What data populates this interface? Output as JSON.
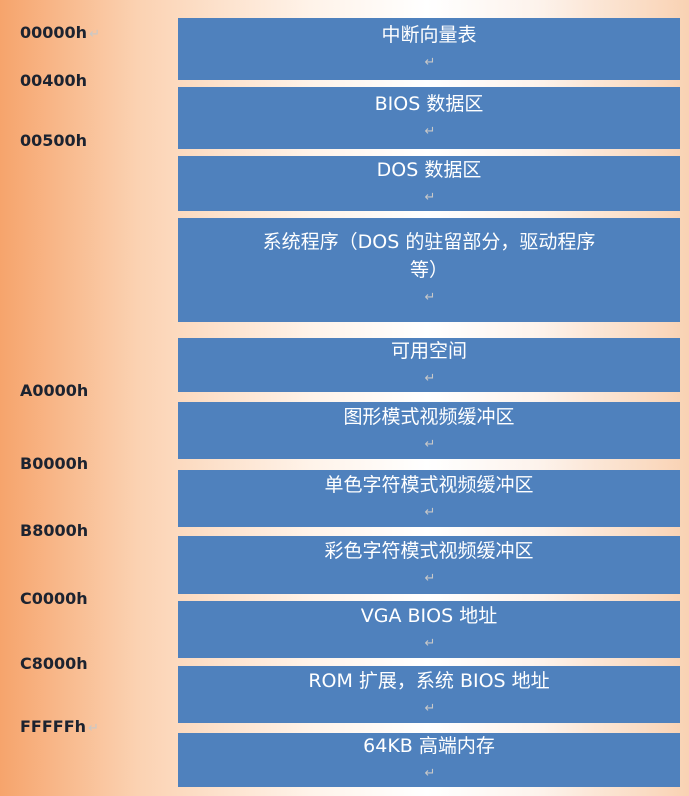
{
  "addresses": [
    {
      "label": "00000h",
      "mark": "↵"
    },
    {
      "label": "00400h",
      "mark": ""
    },
    {
      "label": "00500h",
      "mark": ""
    },
    {
      "label": "A0000h",
      "mark": ""
    },
    {
      "label": "B0000h",
      "mark": ""
    },
    {
      "label": "B8000h",
      "mark": ""
    },
    {
      "label": "C0000h",
      "mark": ""
    },
    {
      "label": "C8000h",
      "mark": ""
    },
    {
      "label": "FFFFFh",
      "mark": "↵"
    }
  ],
  "blocks": [
    {
      "line1": "中断向量表",
      "line2": "",
      "mark": "↵"
    },
    {
      "line1": "BIOS 数据区",
      "line2": "",
      "mark": "↵"
    },
    {
      "line1": "DOS 数据区",
      "line2": "",
      "mark": "↵"
    },
    {
      "line1": "系统程序（DOS 的驻留部分，驱动程序",
      "line2": "等）",
      "mark": "↵"
    },
    {
      "line1": "可用空间",
      "line2": "",
      "mark": "↵"
    },
    {
      "line1": "图形模式视频缓冲区",
      "line2": "",
      "mark": "↵"
    },
    {
      "line1": "单色字符模式视频缓冲区",
      "line2": "",
      "mark": "↵"
    },
    {
      "line1": "彩色字符模式视频缓冲区",
      "line2": "",
      "mark": "↵"
    },
    {
      "line1": "VGA BIOS 地址",
      "line2": "",
      "mark": "↵"
    },
    {
      "line1": "ROM 扩展，系统 BIOS 地址",
      "line2": "",
      "mark": "↵"
    },
    {
      "line1": "64KB 高端内存",
      "line2": "",
      "mark": "↵"
    }
  ],
  "colors": {
    "block_fill": "#4f81bd",
    "block_text": "#ffffff",
    "address_text": "#1c2330"
  }
}
